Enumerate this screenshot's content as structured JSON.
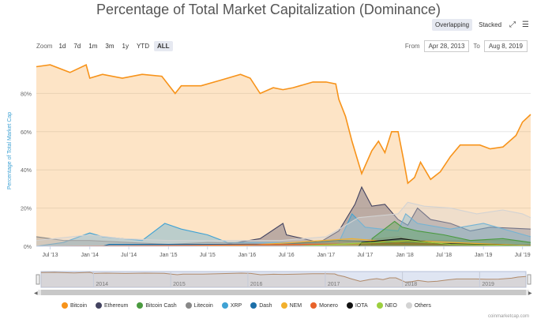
{
  "header": {
    "title": "Percentage of Total Market Capitalization (Dominance)"
  },
  "view": {
    "overlapping": "Overlapping",
    "stacked": "Stacked",
    "fullscreen_icon": "expand-icon",
    "menu_icon": "hamburger-menu-icon"
  },
  "zoom": {
    "label": "Zoom",
    "buttons": [
      "1d",
      "7d",
      "1m",
      "3m",
      "1y",
      "YTD",
      "ALL"
    ],
    "active": "ALL"
  },
  "range": {
    "from_label": "From",
    "from": "Apr 28, 2013",
    "to_label": "To",
    "to": "Aug 8, 2019"
  },
  "credit": "coinmarketcap.com",
  "colors": {
    "bitcoin": "#f7931a",
    "ethereum": "#434360",
    "bitcoin_cash": "#4a9a3f",
    "litecoin": "#888888",
    "xrp": "#3fa2d4",
    "dash": "#1c6fa8",
    "nem": "#f2b02c",
    "monero": "#e8632a",
    "iota": "#111111",
    "neo": "#9ccf3f",
    "others": "#d3d3d3"
  },
  "chart_data": {
    "type": "area",
    "title": "Percentage of Total Market Capitalization (Dominance)",
    "ylabel": "Percentage of Total Market Cap",
    "xlabel": "",
    "ylim": [
      0,
      100
    ],
    "yticks": [
      "0%",
      "20%",
      "40%",
      "60%",
      "80%"
    ],
    "yticks_values": [
      0,
      20,
      40,
      60,
      80
    ],
    "xlim": [
      "2013-04-28",
      "2019-08-08"
    ],
    "xticks": [
      "Jul '13",
      "Jan '14",
      "Jul '14",
      "Jan '15",
      "Jul '15",
      "Jan '16",
      "Jul '16",
      "Jan '17",
      "Jul '17",
      "Jan '18",
      "Jul '18",
      "Jan '19",
      "Jul '19"
    ],
    "xticks_dates": [
      "2013-07-01",
      "2014-01-01",
      "2014-07-01",
      "2015-01-01",
      "2015-07-01",
      "2016-01-01",
      "2016-07-01",
      "2017-01-01",
      "2017-07-01",
      "2018-01-01",
      "2018-07-01",
      "2019-01-01",
      "2019-07-01"
    ],
    "navigator_labels": [
      "2014",
      "2015",
      "2016",
      "2017",
      "2018",
      "2019"
    ],
    "navigator_dates": [
      "2014-01-01",
      "2015-01-01",
      "2016-01-01",
      "2017-01-01",
      "2018-01-01",
      "2019-01-01"
    ],
    "legend_position": "bottom",
    "series": [
      {
        "name": "Bitcoin",
        "color_key": "bitcoin",
        "points": [
          [
            "2013-04-28",
            94
          ],
          [
            "2013-07-01",
            95
          ],
          [
            "2013-10-01",
            91
          ],
          [
            "2013-12-15",
            95
          ],
          [
            "2014-01-01",
            88
          ],
          [
            "2014-03-01",
            90
          ],
          [
            "2014-06-01",
            88
          ],
          [
            "2014-09-01",
            90
          ],
          [
            "2014-12-01",
            89
          ],
          [
            "2015-02-01",
            80
          ],
          [
            "2015-03-01",
            84
          ],
          [
            "2015-06-01",
            84
          ],
          [
            "2015-09-01",
            87
          ],
          [
            "2015-12-01",
            90
          ],
          [
            "2016-01-15",
            88
          ],
          [
            "2016-03-01",
            80
          ],
          [
            "2016-05-01",
            83
          ],
          [
            "2016-06-15",
            82
          ],
          [
            "2016-08-01",
            83
          ],
          [
            "2016-11-01",
            86
          ],
          [
            "2017-01-01",
            86
          ],
          [
            "2017-02-15",
            85
          ],
          [
            "2017-03-01",
            77
          ],
          [
            "2017-04-01",
            68
          ],
          [
            "2017-05-01",
            55
          ],
          [
            "2017-06-15",
            38
          ],
          [
            "2017-08-01",
            50
          ],
          [
            "2017-09-01",
            55
          ],
          [
            "2017-10-01",
            49
          ],
          [
            "2017-11-01",
            60
          ],
          [
            "2017-12-01",
            60
          ],
          [
            "2017-12-25",
            46
          ],
          [
            "2018-01-15",
            33
          ],
          [
            "2018-02-15",
            36
          ],
          [
            "2018-03-15",
            44
          ],
          [
            "2018-05-01",
            35
          ],
          [
            "2018-06-15",
            39
          ],
          [
            "2018-08-01",
            47
          ],
          [
            "2018-09-15",
            53
          ],
          [
            "2018-11-01",
            53
          ],
          [
            "2018-12-15",
            53
          ],
          [
            "2019-02-01",
            51
          ],
          [
            "2019-04-01",
            52
          ],
          [
            "2019-06-01",
            58
          ],
          [
            "2019-07-01",
            65
          ],
          [
            "2019-08-08",
            69
          ]
        ]
      },
      {
        "name": "Ethereum",
        "color_key": "ethereum",
        "points": [
          [
            "2013-04-28",
            0
          ],
          [
            "2015-08-01",
            0
          ],
          [
            "2016-03-01",
            4
          ],
          [
            "2016-06-15",
            12
          ],
          [
            "2016-07-01",
            6
          ],
          [
            "2016-12-01",
            2
          ],
          [
            "2017-03-01",
            8
          ],
          [
            "2017-05-15",
            22
          ],
          [
            "2017-06-15",
            31
          ],
          [
            "2017-08-01",
            21
          ],
          [
            "2017-10-01",
            22
          ],
          [
            "2017-12-01",
            14
          ],
          [
            "2018-01-15",
            11
          ],
          [
            "2018-03-01",
            20
          ],
          [
            "2018-05-01",
            14
          ],
          [
            "2018-08-01",
            12
          ],
          [
            "2018-11-01",
            8
          ],
          [
            "2019-02-01",
            10
          ],
          [
            "2019-08-08",
            9
          ]
        ]
      },
      {
        "name": "XRP",
        "color_key": "xrp",
        "points": [
          [
            "2013-04-28",
            0
          ],
          [
            "2013-09-01",
            2
          ],
          [
            "2014-01-01",
            7
          ],
          [
            "2014-03-01",
            5
          ],
          [
            "2014-09-01",
            3
          ],
          [
            "2014-12-15",
            12
          ],
          [
            "2015-03-01",
            9
          ],
          [
            "2015-07-01",
            6
          ],
          [
            "2015-10-01",
            2
          ],
          [
            "2016-03-01",
            2
          ],
          [
            "2017-03-01",
            2
          ],
          [
            "2017-05-01",
            17
          ],
          [
            "2017-07-01",
            10
          ],
          [
            "2017-12-01",
            8
          ],
          [
            "2018-01-05",
            17
          ],
          [
            "2018-03-01",
            12
          ],
          [
            "2018-08-01",
            9
          ],
          [
            "2019-01-01",
            12
          ],
          [
            "2019-08-08",
            5
          ]
        ]
      },
      {
        "name": "Litecoin",
        "color_key": "litecoin",
        "points": [
          [
            "2013-04-28",
            5
          ],
          [
            "2013-09-01",
            3
          ],
          [
            "2014-01-01",
            3
          ],
          [
            "2014-07-01",
            2
          ],
          [
            "2015-01-01",
            1
          ],
          [
            "2015-07-01",
            2
          ],
          [
            "2016-07-01",
            1
          ],
          [
            "2017-03-01",
            2
          ],
          [
            "2017-12-01",
            5
          ],
          [
            "2018-03-01",
            3
          ],
          [
            "2019-06-01",
            3
          ],
          [
            "2019-08-08",
            2
          ]
        ]
      },
      {
        "name": "Others",
        "color_key": "others",
        "points": [
          [
            "2013-04-28",
            3
          ],
          [
            "2014-01-01",
            6
          ],
          [
            "2014-06-01",
            4
          ],
          [
            "2015-01-01",
            3
          ],
          [
            "2016-01-01",
            3
          ],
          [
            "2016-06-01",
            3
          ],
          [
            "2017-01-01",
            5
          ],
          [
            "2017-06-01",
            15
          ],
          [
            "2017-12-01",
            17
          ],
          [
            "2018-01-15",
            23
          ],
          [
            "2018-04-01",
            21
          ],
          [
            "2018-08-01",
            20
          ],
          [
            "2018-12-01",
            17
          ],
          [
            "2019-04-01",
            19
          ],
          [
            "2019-07-01",
            17
          ],
          [
            "2019-08-08",
            15
          ]
        ]
      },
      {
        "name": "Bitcoin Cash",
        "color_key": "bitcoin_cash",
        "points": [
          [
            "2013-04-28",
            0
          ],
          [
            "2017-08-01",
            0
          ],
          [
            "2017-08-02",
            4
          ],
          [
            "2017-11-15",
            13
          ],
          [
            "2017-12-20",
            10
          ],
          [
            "2018-03-01",
            8
          ],
          [
            "2018-07-01",
            6
          ],
          [
            "2018-11-01",
            3
          ],
          [
            "2019-04-01",
            4
          ],
          [
            "2019-08-08",
            2
          ]
        ]
      },
      {
        "name": "Dash",
        "color_key": "dash",
        "points": [
          [
            "2013-04-28",
            0
          ],
          [
            "2014-03-01",
            0
          ],
          [
            "2014-04-01",
            1
          ],
          [
            "2016-06-01",
            1
          ],
          [
            "2017-03-01",
            3
          ],
          [
            "2017-12-01",
            2
          ],
          [
            "2018-06-01",
            1
          ],
          [
            "2019-08-08",
            0.5
          ]
        ]
      },
      {
        "name": "NEM",
        "color_key": "nem",
        "points": [
          [
            "2013-04-28",
            0
          ],
          [
            "2015-04-01",
            0
          ],
          [
            "2016-01-01",
            0.5
          ],
          [
            "2017-05-01",
            4
          ],
          [
            "2017-12-01",
            2
          ],
          [
            "2018-01-15",
            3
          ],
          [
            "2019-08-08",
            0.3
          ]
        ]
      },
      {
        "name": "Monero",
        "color_key": "monero",
        "points": [
          [
            "2013-04-28",
            0
          ],
          [
            "2014-06-01",
            0.2
          ],
          [
            "2016-08-01",
            1
          ],
          [
            "2017-12-01",
            1.5
          ],
          [
            "2019-08-08",
            0.5
          ]
        ]
      },
      {
        "name": "IOTA",
        "color_key": "iota",
        "points": [
          [
            "2013-04-28",
            0
          ],
          [
            "2017-06-01",
            0
          ],
          [
            "2017-06-15",
            2
          ],
          [
            "2017-12-15",
            4
          ],
          [
            "2018-06-01",
            1.5
          ],
          [
            "2019-08-08",
            0.3
          ]
        ]
      },
      {
        "name": "NEO",
        "color_key": "neo",
        "points": [
          [
            "2013-04-28",
            0
          ],
          [
            "2016-09-01",
            0
          ],
          [
            "2017-08-01",
            2
          ],
          [
            "2018-01-15",
            3
          ],
          [
            "2018-08-01",
            1
          ],
          [
            "2019-08-08",
            0.3
          ]
        ]
      }
    ],
    "legend_order": [
      "Bitcoin",
      "Ethereum",
      "Bitcoin Cash",
      "Litecoin",
      "XRP",
      "Dash",
      "NEM",
      "Monero",
      "IOTA",
      "NEO",
      "Others"
    ]
  }
}
